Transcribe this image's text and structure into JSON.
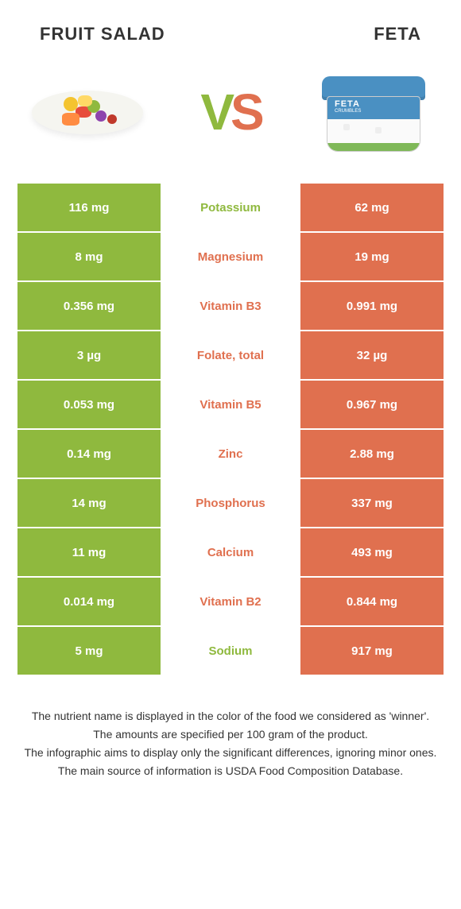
{
  "header": {
    "left_title": "FRUIT SALAD",
    "right_title": "FETA",
    "vs_v": "V",
    "vs_s": "S"
  },
  "colors": {
    "green": "#8fb93e",
    "orange": "#e0704f",
    "text": "#333333",
    "background": "#ffffff"
  },
  "rows": [
    {
      "left": "116 mg",
      "label": "Potassium",
      "right": "62 mg",
      "winner": "left"
    },
    {
      "left": "8 mg",
      "label": "Magnesium",
      "right": "19 mg",
      "winner": "right"
    },
    {
      "left": "0.356 mg",
      "label": "Vitamin B3",
      "right": "0.991 mg",
      "winner": "right"
    },
    {
      "left": "3 µg",
      "label": "Folate, total",
      "right": "32 µg",
      "winner": "right"
    },
    {
      "left": "0.053 mg",
      "label": "Vitamin B5",
      "right": "0.967 mg",
      "winner": "right"
    },
    {
      "left": "0.14 mg",
      "label": "Zinc",
      "right": "2.88 mg",
      "winner": "right"
    },
    {
      "left": "14 mg",
      "label": "Phosphorus",
      "right": "337 mg",
      "winner": "right"
    },
    {
      "left": "11 mg",
      "label": "Calcium",
      "right": "493 mg",
      "winner": "right"
    },
    {
      "left": "0.014 mg",
      "label": "Vitamin B2",
      "right": "0.844 mg",
      "winner": "right"
    },
    {
      "left": "5 mg",
      "label": "Sodium",
      "right": "917 mg",
      "winner": "left"
    }
  ],
  "footer": {
    "line1": "The nutrient name is displayed in the color of the food we considered as 'winner'.",
    "line2": "The amounts are specified per 100 gram of the product.",
    "line3": "The infographic aims to display only the significant differences, ignoring minor ones.",
    "line4": "The main source of information is USDA Food Composition Database."
  },
  "feta_illustration": {
    "brand": "FETA",
    "sub": "CRUMBLES"
  }
}
